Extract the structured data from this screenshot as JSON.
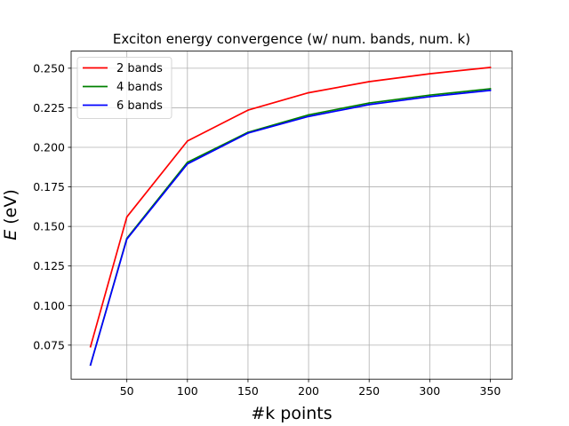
{
  "chart_data": {
    "type": "line",
    "title": "Exciton energy convergence (w/ num. bands, num. k)",
    "xlabel": "#k points",
    "ylabel_symbol": "E",
    "ylabel_unit": " (eV)",
    "xlim": [
      4,
      368
    ],
    "ylim": [
      0.0535,
      0.2608
    ],
    "x_ticks": [
      50,
      100,
      150,
      200,
      250,
      300,
      350
    ],
    "y_ticks": [
      0.075,
      0.1,
      0.125,
      0.15,
      0.175,
      0.2,
      0.225,
      0.25
    ],
    "x_tick_labels": [
      "50",
      "100",
      "150",
      "200",
      "250",
      "300",
      "350"
    ],
    "y_tick_labels": [
      "0.075",
      "0.100",
      "0.125",
      "0.150",
      "0.175",
      "0.200",
      "0.225",
      "0.250"
    ],
    "grid": true,
    "legend_position": "top-left",
    "x": [
      20,
      50,
      100,
      150,
      200,
      250,
      300,
      350
    ],
    "series": [
      {
        "name": "2 bands",
        "color": "#ff0000",
        "values": [
          0.074,
          0.156,
          0.204,
          0.2235,
          0.2345,
          0.2415,
          0.2465,
          0.2505
        ]
      },
      {
        "name": "4 bands",
        "color": "#008000",
        "values": [
          0.0625,
          0.1425,
          0.1905,
          0.2095,
          0.2205,
          0.228,
          0.233,
          0.237
        ]
      },
      {
        "name": "6 bands",
        "color": "#0000ff",
        "values": [
          0.0625,
          0.142,
          0.1895,
          0.209,
          0.2195,
          0.227,
          0.232,
          0.236
        ]
      }
    ]
  }
}
